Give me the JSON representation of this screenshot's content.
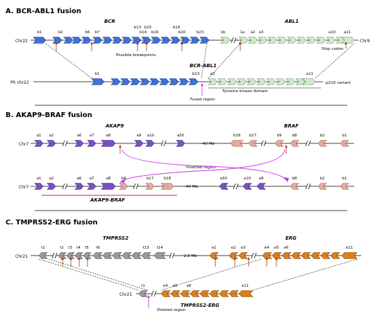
{
  "colors": {
    "bcr": "#3f72d9",
    "bcr_head": "#3f72d9",
    "abl": "#cfe8cc",
    "abl_stroke": "#6f9d6f",
    "akap": "#7c4fc8",
    "braf": "#e6a79f",
    "braf_stroke": "#b06a61",
    "tmprss": "#9a9a9a",
    "erg": "#d9801c",
    "arrow": "#b0421a",
    "magenta": "#cc33ee",
    "underline": "#c62828"
  },
  "panel_a": {
    "title": "A. BCR-ABL1 fusion",
    "gene_bcr": "BCR",
    "gene_abl": "ABL1",
    "chr22": "Chr22",
    "chr9": "Chr9",
    "ph_chr": "Ph chr22",
    "breakpoints": "Possible breakpoints",
    "stop": "Stop codon",
    "fusion_label": "BCR-ABL1",
    "fused_region": "Fused region",
    "tk_domain": "Tyrosine kinase domain",
    "p210": "p210 variant",
    "exon_labels": {
      "b1": "b1",
      "b2": "b2",
      "b6": "b6",
      "b7": "b7",
      "b13": "b13",
      "b14": "b14",
      "b15": "b15",
      "b16": "b16",
      "b19": "b19",
      "b20": "b20",
      "b23": "b23",
      "e1b": "1b",
      "e1a": "1a",
      "a2": "a2",
      "a3": "a3",
      "a10": "a10",
      "a11": "a11",
      "f_b1": "b1",
      "f_b13": "b13",
      "f_e2": "e2",
      "f_a11": "a11"
    }
  },
  "panel_b": {
    "title": "B. AKAP9-BRAF fusion",
    "gene_akap": "AKAP9",
    "gene_braf": "BRAF",
    "chr7": "Chr7",
    "gap": "~49 Mb",
    "inverted": "Inverted region",
    "fusion_label": "AKAP9-BRAF",
    "top_labels": {
      "a1": "a1",
      "a2": "a2",
      "a6": "a6",
      "a7": "a7",
      "a8": "a8",
      "a9": "a9",
      "a10": "a10",
      "a50": "a50",
      "b18": "b18",
      "b17": "b17",
      "b9": "b9",
      "b8": "b8",
      "b2": "b2",
      "b1": "b1"
    },
    "bot_labels": {
      "a1": "a1",
      "a2": "a2",
      "a6": "a6",
      "a7": "a7",
      "a8": "a8",
      "b9": "b9",
      "b17": "b17",
      "b18": "b18",
      "a50": "a50",
      "a10": "a10",
      "a9": "a9",
      "b8": "b8",
      "b2": "b2",
      "b1": "b1"
    }
  },
  "panel_c": {
    "title": "C. TMPRSS2-ERG fusion",
    "gene_tmp": "TMPRSS2",
    "gene_erg": "ERG",
    "chr21": "Chr21",
    "gap": "~2.8 Mb",
    "deleted": "Deleted region",
    "fusion_label": "TMPRSS2-ERG",
    "top_labels": {
      "t1": "t1",
      "t2": "t2",
      "t3": "t3",
      "t4": "t4",
      "t5": "t5",
      "t6": "t6",
      "t13": "t13",
      "t14": "t14",
      "e1": "e1",
      "e2": "e2",
      "e3": "e3",
      "e4": "e4",
      "e5": "e5",
      "e6": "e6",
      "e11": "e11"
    },
    "bot_labels": {
      "t1": "t1",
      "e4": "e4",
      "e5": "e5",
      "e6": "e6",
      "e11": "e11"
    }
  }
}
